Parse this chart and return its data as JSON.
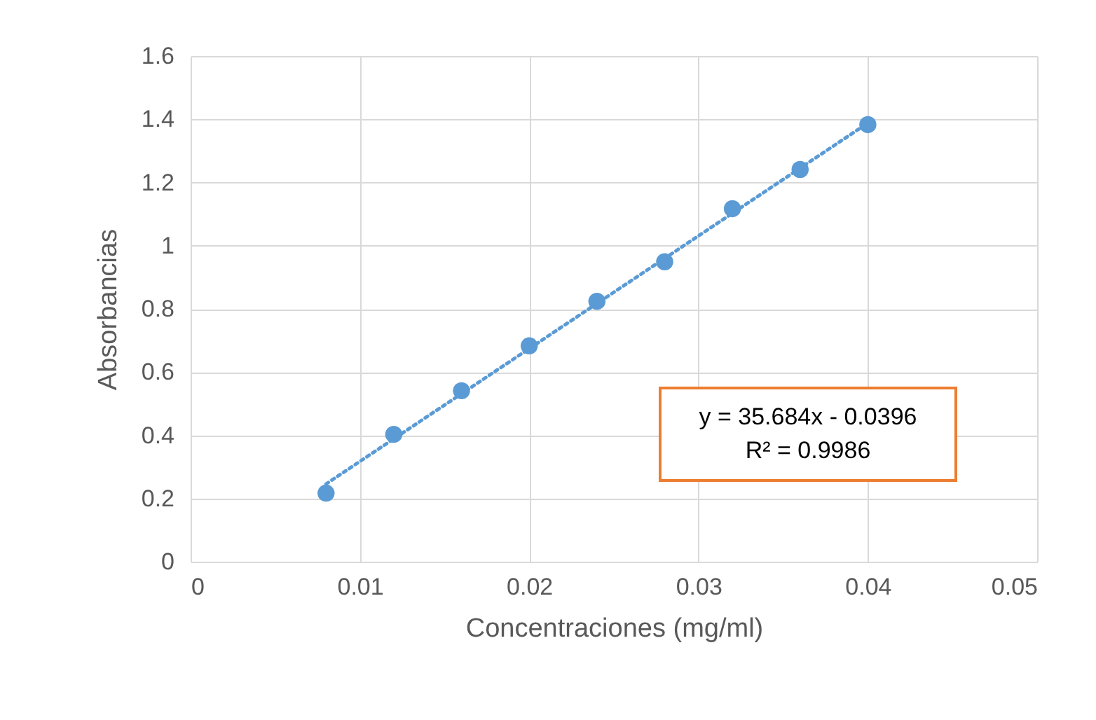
{
  "chart_data": {
    "type": "scatter",
    "xlabel": "Concentraciones (mg/ml)",
    "ylabel": "Absorbancias",
    "x": [
      0.008,
      0.012,
      0.016,
      0.02,
      0.024,
      0.028,
      0.032,
      0.036,
      0.04
    ],
    "xlim": [
      0,
      0.05
    ],
    "xticks": [
      0,
      0.01,
      0.02,
      0.03,
      0.04,
      0.05
    ],
    "ylim": [
      0,
      1.6
    ],
    "yticks": [
      0,
      0.2,
      0.4,
      0.6,
      0.8,
      1,
      1.2,
      1.4,
      1.6
    ],
    "grid": true,
    "marker": "circle",
    "line_style": "dotted",
    "series": [
      {
        "color": "#5b9bd5",
        "values": [
          0.217,
          0.403,
          0.541,
          0.683,
          0.824,
          0.949,
          1.117,
          1.241,
          1.383
        ]
      },
      {
        "type": "line",
        "color": "#5b9bd5",
        "x": [
          0.008,
          0.04
        ],
        "values": [
          0.246,
          1.388
        ],
        "marker": "none"
      }
    ],
    "annotations": [
      "y = 35.684x - 0.0396",
      "R² = 0.9986"
    ]
  }
}
